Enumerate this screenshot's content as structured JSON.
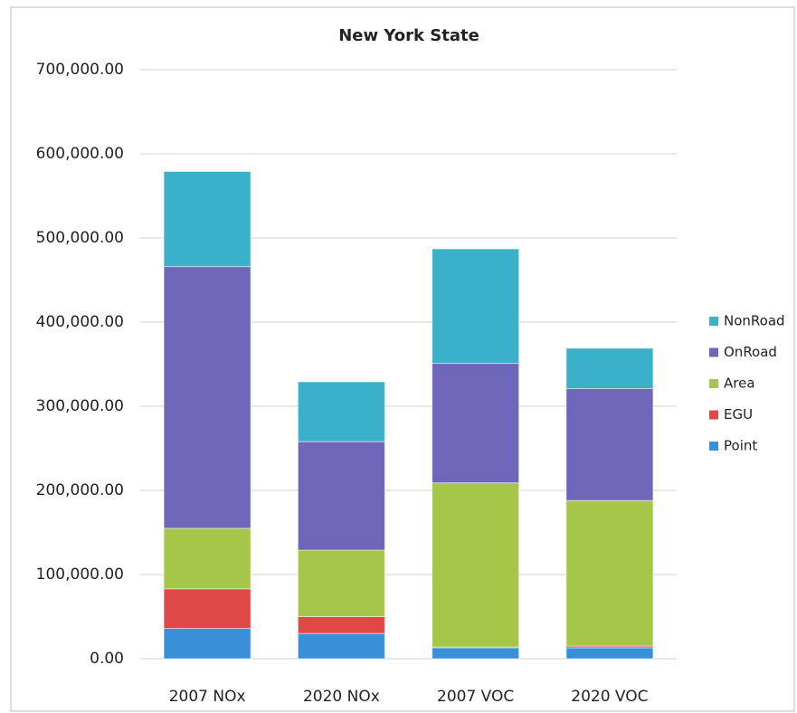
{
  "chart_data": {
    "type": "stacked_bar",
    "title": "New York State",
    "categories": [
      "2007 NOx",
      "2020 NOx",
      "2007 VOC",
      "2020 VOC"
    ],
    "series": [
      {
        "name": "Point",
        "color": "#3a8fd9",
        "values": [
          36000,
          30000,
          13000,
          13000
        ]
      },
      {
        "name": "EGU",
        "color": "#e04848",
        "values": [
          47000,
          20000,
          1000,
          2000
        ]
      },
      {
        "name": "Area",
        "color": "#a6c64a",
        "values": [
          72000,
          79000,
          195000,
          173000
        ]
      },
      {
        "name": "OnRoad",
        "color": "#6e66b8",
        "values": [
          311000,
          129000,
          142000,
          133000
        ]
      },
      {
        "name": "NonRoad",
        "color": "#3bb0c9",
        "values": [
          113000,
          71000,
          136000,
          48000
        ]
      }
    ],
    "ylim": [
      0,
      700000
    ],
    "yticks": [
      {
        "value": 0,
        "label": "0.00"
      },
      {
        "value": 100000,
        "label": "100,000.00"
      },
      {
        "value": 200000,
        "label": "200,000.00"
      },
      {
        "value": 300000,
        "label": "300,000.00"
      },
      {
        "value": 400000,
        "label": "400,000.00"
      },
      {
        "value": 500000,
        "label": "500,000.00"
      },
      {
        "value": 600000,
        "label": "600,000.00"
      },
      {
        "value": 700000,
        "label": "700,000.00"
      }
    ],
    "grid": true,
    "legend": "right"
  }
}
